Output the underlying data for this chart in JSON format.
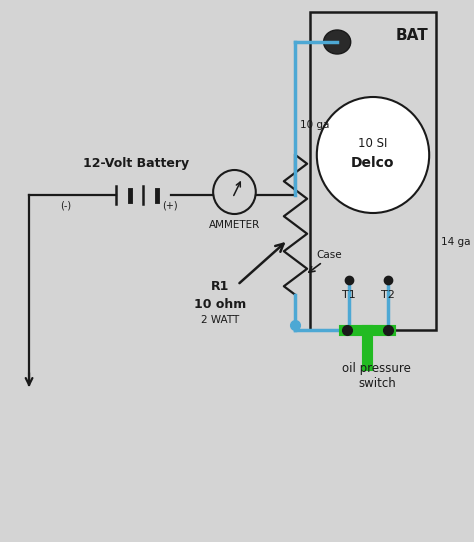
{
  "bg_color": "#d4d4d4",
  "wire_color": "#1a1a1a",
  "blue_wire": "#4da8d4",
  "green_color": "#22bb22",
  "battery_label": "12-Volt Battery",
  "ammeter_label": "AMMETER",
  "bat_label": "BAT",
  "delco_label1": "10 SI",
  "delco_label2": "Delco",
  "t1_label": "T1",
  "t2_label": "T2",
  "r1_label": "R1",
  "ohm_label": "10 ohm",
  "watt_label": "2 WATT",
  "case_label": "Case",
  "ga10_label": "10 ga",
  "ga14_label": "14 ga",
  "oil_label": "oil pressure\nswitch",
  "neg_label": "(-)",
  "pos_label": "(+)",
  "figsize": [
    4.74,
    5.42
  ],
  "dpi": 100
}
